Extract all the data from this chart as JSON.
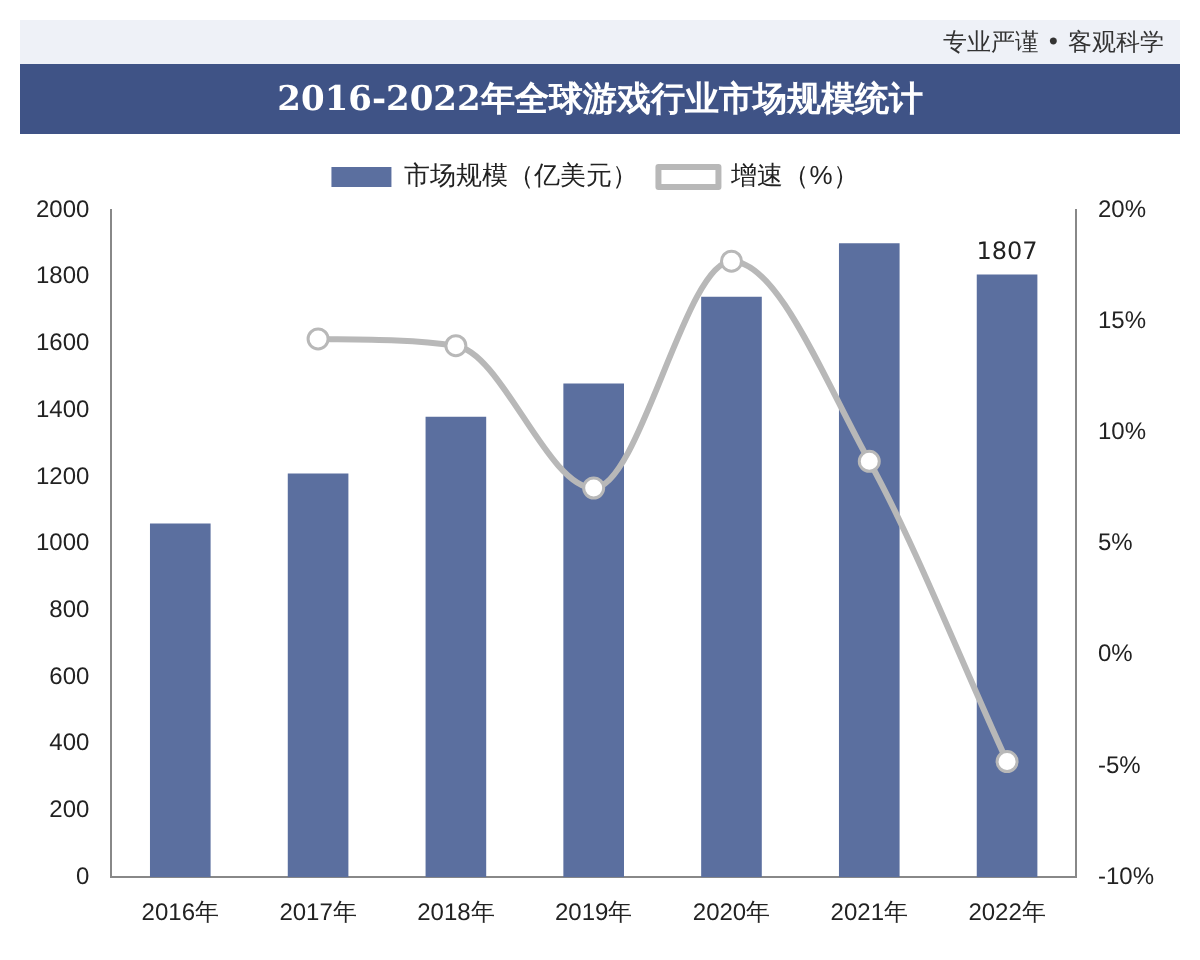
{
  "chart_data": {
    "type": "bar",
    "title": "2016-2022年全球游戏行业市场规模统计",
    "subtitle": "专业严谨 • 客观科学",
    "categories": [
      "2016年",
      "2017年",
      "2018年",
      "2019年",
      "2020年",
      "2021年",
      "2022年"
    ],
    "series": [
      {
        "name": "市场规模（亿美元）",
        "color": "#5b6f9f",
        "values": [
          1060,
          1210,
          1380,
          1480,
          1740,
          1900,
          1807
        ],
        "value_labels": [
          null,
          null,
          null,
          null,
          null,
          null,
          "1807"
        ]
      },
      {
        "name": "增速（%）",
        "type": "line",
        "axis": "y2",
        "color": "#b8b8b8",
        "marker": "circle",
        "values": [
          null,
          14.2,
          13.9,
          7.5,
          17.7,
          8.7,
          -4.8
        ]
      }
    ],
    "ylim": [
      0,
      2000
    ],
    "yticks": [
      0,
      200,
      400,
      600,
      800,
      1000,
      1200,
      1400,
      1600,
      1800,
      2000
    ],
    "y2lim": [
      -10,
      20
    ],
    "y2ticks": [
      {
        "value": -10,
        "label": "-10%"
      },
      {
        "value": -5,
        "label": "-5%"
      },
      {
        "value": 0,
        "label": "0%"
      },
      {
        "value": 5,
        "label": "5%"
      },
      {
        "value": 10,
        "label": "10%"
      },
      {
        "value": 15,
        "label": "15%"
      },
      {
        "value": 20,
        "label": "20%"
      }
    ],
    "grid": false,
    "legend": "top"
  }
}
